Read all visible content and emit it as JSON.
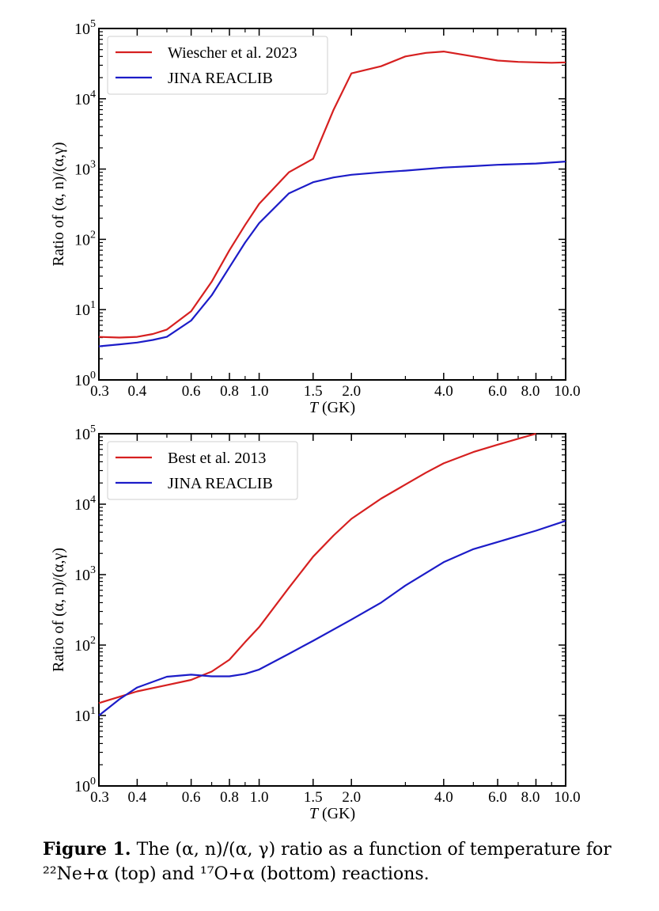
{
  "chart_data": [
    {
      "type": "line",
      "xscale": "log",
      "yscale": "log",
      "xlim": [
        0.3,
        10.0
      ],
      "ylim": [
        1,
        100000
      ],
      "xlabel": "T (GK)",
      "xlabel_var": "T",
      "xlabel_unit": " (GK)",
      "ylabel": "Ratio of (α, n)/(α,γ)",
      "x_ticks": [
        0.3,
        0.4,
        0.6,
        0.8,
        1.0,
        1.5,
        2.0,
        4.0,
        6.0,
        8.0,
        10.0
      ],
      "x_tick_labels": [
        "0.3",
        "0.4",
        "0.6",
        "0.8",
        "1.0",
        "1.5",
        "2.0",
        "4.0",
        "6.0",
        "8.0",
        "10.0"
      ],
      "y_ticks": [
        1,
        10,
        100,
        1000,
        10000,
        100000
      ],
      "y_tick_exponents": [
        "0",
        "1",
        "2",
        "3",
        "4",
        "5"
      ],
      "grid": false,
      "legend": "top-left",
      "series": [
        {
          "name": "Wiescher et al. 2023",
          "color": "#d62020",
          "x": [
            0.3,
            0.35,
            0.4,
            0.45,
            0.5,
            0.6,
            0.7,
            0.8,
            0.9,
            1.0,
            1.25,
            1.5,
            1.75,
            2.0,
            2.5,
            3.0,
            3.5,
            4.0,
            5.0,
            6.0,
            7.0,
            8.0,
            9.0,
            10.0
          ],
          "y": [
            4.1,
            4.0,
            4.1,
            4.5,
            5.2,
            9.5,
            25,
            70,
            160,
            320,
            900,
            1400,
            7000,
            23000,
            29000,
            40000,
            45000,
            47000,
            40000,
            35000,
            33500,
            33000,
            32500,
            33000
          ]
        },
        {
          "name": "JINA REACLIB",
          "color": "#1c1cc8",
          "x": [
            0.3,
            0.35,
            0.4,
            0.45,
            0.5,
            0.6,
            0.7,
            0.8,
            0.9,
            1.0,
            1.25,
            1.5,
            1.75,
            2.0,
            2.5,
            3.0,
            4.0,
            5.0,
            6.0,
            8.0,
            10.0
          ],
          "y": [
            3.0,
            3.2,
            3.4,
            3.7,
            4.1,
            7.0,
            16,
            40,
            90,
            170,
            450,
            650,
            760,
            830,
            900,
            950,
            1050,
            1100,
            1150,
            1200,
            1280
          ]
        }
      ]
    },
    {
      "type": "line",
      "xscale": "log",
      "yscale": "log",
      "xlim": [
        0.3,
        10.0
      ],
      "ylim": [
        1,
        100000
      ],
      "xlabel": "T (GK)",
      "xlabel_var": "T",
      "xlabel_unit": " (GK)",
      "ylabel": "Ratio of (α, n)/(α,γ)",
      "x_ticks": [
        0.3,
        0.4,
        0.6,
        0.8,
        1.0,
        1.5,
        2.0,
        4.0,
        6.0,
        8.0,
        10.0
      ],
      "x_tick_labels": [
        "0.3",
        "0.4",
        "0.6",
        "0.8",
        "1.0",
        "1.5",
        "2.0",
        "4.0",
        "6.0",
        "8.0",
        "10.0"
      ],
      "y_ticks": [
        1,
        10,
        100,
        1000,
        10000,
        100000
      ],
      "y_tick_exponents": [
        "0",
        "1",
        "2",
        "3",
        "4",
        "5"
      ],
      "grid": false,
      "legend": "top-left",
      "series": [
        {
          "name": "Best et al. 2013",
          "color": "#d62020",
          "x": [
            0.3,
            0.4,
            0.5,
            0.6,
            0.7,
            0.8,
            0.9,
            1.0,
            1.25,
            1.5,
            1.75,
            2.0,
            2.5,
            3.0,
            3.5,
            4.0,
            5.0,
            6.0,
            7.0,
            8.0
          ],
          "y": [
            15,
            22,
            27,
            32,
            42,
            62,
            110,
            180,
            650,
            1800,
            3600,
            6200,
            12000,
            19000,
            28000,
            38000,
            55000,
            70000,
            85000,
            100000
          ]
        },
        {
          "name": "JINA REACLIB",
          "color": "#1c1cc8",
          "x": [
            0.3,
            0.35,
            0.4,
            0.5,
            0.6,
            0.7,
            0.8,
            0.9,
            1.0,
            1.25,
            1.5,
            2.0,
            2.5,
            3.0,
            4.0,
            5.0,
            6.0,
            8.0,
            10.0
          ],
          "y": [
            10,
            17,
            25,
            35.5,
            38,
            36,
            36,
            39,
            45,
            75,
            115,
            230,
            400,
            700,
            1500,
            2300,
            2900,
            4200,
            5800
          ]
        }
      ]
    }
  ],
  "caption": {
    "lead": "Figure 1.",
    "text": " The (α, n)/(α, γ) ratio as a function of temperature for ²²Ne+α (top) and ¹⁷O+α (bottom) reactions."
  }
}
